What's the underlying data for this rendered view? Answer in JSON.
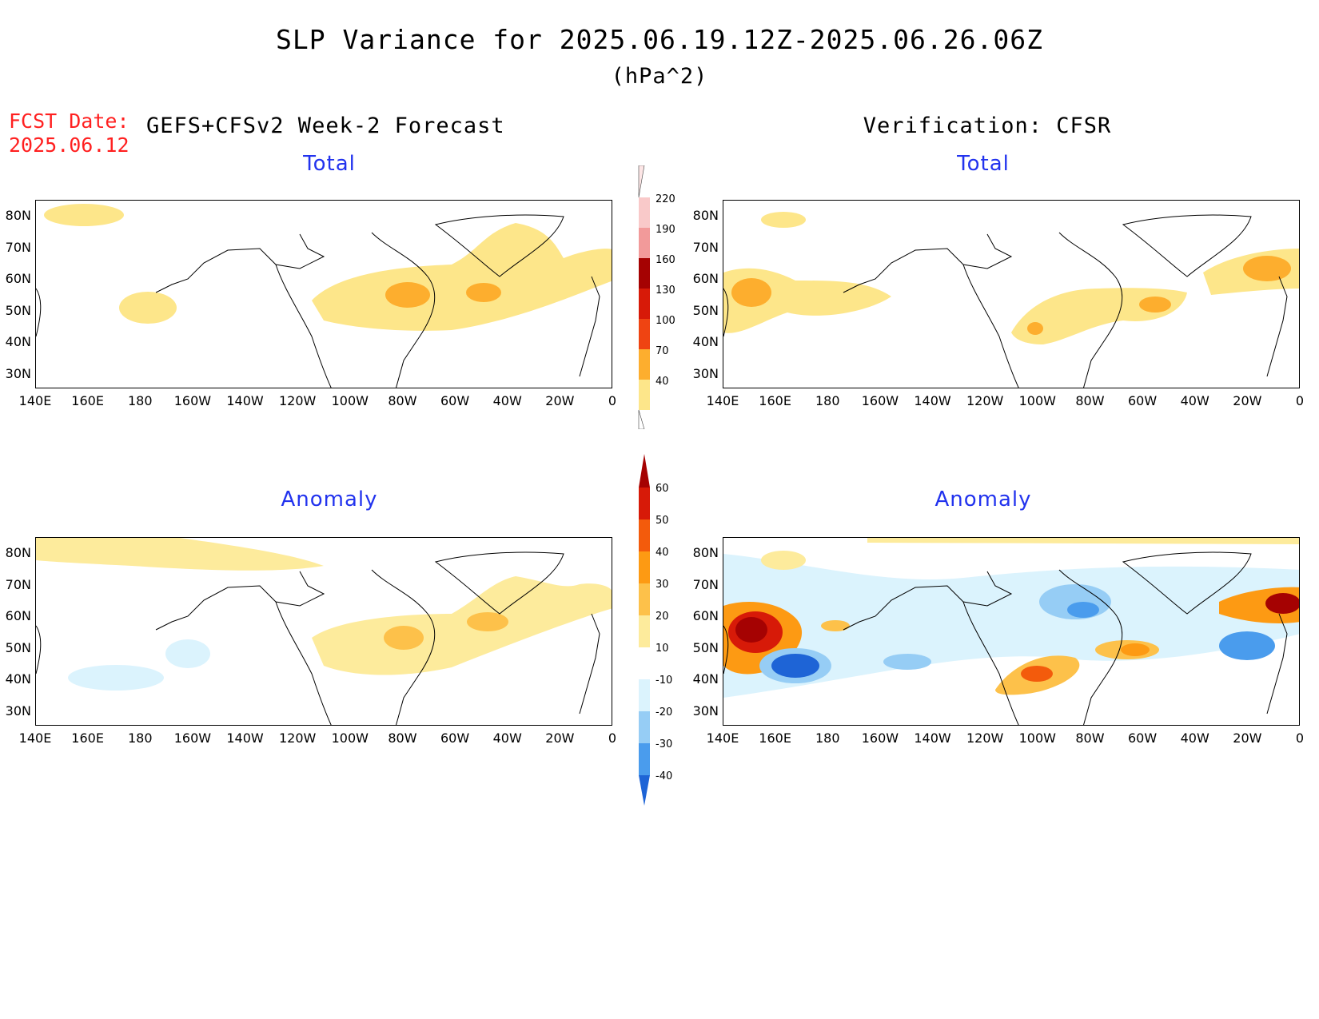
{
  "title": "SLP Variance for 2025.06.19.12Z-2025.06.26.06Z",
  "units": "(hPa^2)",
  "fcst_date_label": "FCST Date:",
  "fcst_date_value": "2025.06.12",
  "forecast_label": "GEFS+CFSv2 Week-2 Forecast",
  "verification_label": "Verification: CFSR",
  "panels": {
    "fcst_total_title": "Total",
    "verif_total_title": "Total",
    "fcst_anom_title": "Anomaly",
    "verif_anom_title": "Anomaly"
  },
  "lat_ticks": [
    "80N",
    "70N",
    "60N",
    "50N",
    "40N",
    "30N"
  ],
  "lon_ticks": [
    "140E",
    "160E",
    "180",
    "160W",
    "140W",
    "120W",
    "100W",
    "80W",
    "60W",
    "40W",
    "20W",
    "0"
  ],
  "total_colorbar": {
    "labels": [
      "40",
      "70",
      "100",
      "130",
      "160",
      "190",
      "220"
    ],
    "colors": [
      "#fde68a",
      "#fdae2e",
      "#f97316",
      "#ef4412",
      "#d71a08",
      "#a50202",
      "#f29a9a",
      "#f9c9c9",
      "#fde6e6"
    ]
  },
  "anomaly_colorbar": {
    "labels": [
      "60",
      "50",
      "40",
      "30",
      "20",
      "10",
      "-10",
      "-20",
      "-30",
      "-40"
    ],
    "colors": [
      "#a50202",
      "#d71a08",
      "#f35b0c",
      "#fd9a13",
      "#fdc14a",
      "#fdeb9c",
      "#ffffff",
      "#dbf3fd",
      "#96cdf5",
      "#4a9ced",
      "#1e64d6"
    ]
  }
}
